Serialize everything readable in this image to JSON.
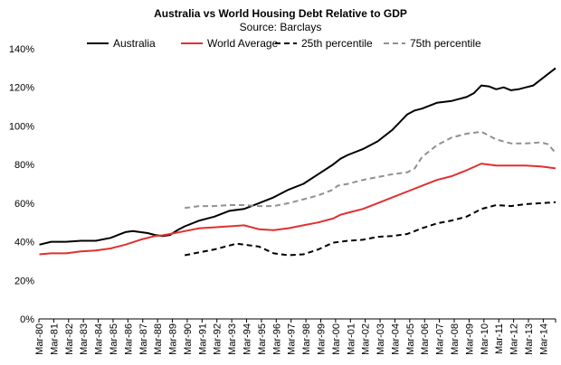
{
  "chart_data": {
    "type": "line",
    "title": "Australia vs World Housing Debt Relative to GDP",
    "subtitle": "Source: Barclays",
    "xlabel": "",
    "ylabel": "",
    "ylim": [
      0,
      140
    ],
    "y_ticks": [
      0,
      20,
      40,
      60,
      80,
      100,
      120,
      140
    ],
    "y_tick_labels": [
      "0%",
      "20%",
      "40%",
      "60%",
      "80%",
      "100%",
      "120%",
      "140%"
    ],
    "x_range": [
      1980.17,
      2015.0
    ],
    "categories": [
      "Mar-80",
      "Mar-81",
      "Mar-82",
      "Mar-83",
      "Mar-84",
      "Mar-85",
      "Mar-86",
      "Mar-87",
      "Mar-88",
      "Mar-89",
      "Mar-90",
      "Mar-91",
      "Mar-92",
      "Mar-93",
      "Mar-94",
      "Mar-95",
      "Mar-96",
      "Mar-97",
      "Mar-98",
      "Mar-99",
      "Mar-00",
      "Mar-01",
      "Mar-02",
      "Mar-03",
      "Mar-04",
      "Mar-05",
      "Mar-06",
      "Mar-07",
      "Mar-08",
      "Mar-09",
      "Mar-10",
      "Mar-11",
      "Mar-12",
      "Mar-13",
      "Mar-14"
    ],
    "legend_position": "top",
    "grid": false,
    "series": [
      {
        "name": "Australia",
        "color": "#000000",
        "dash": "solid",
        "x": [
          1980.2,
          1981,
          1982,
          1983,
          1984,
          1985,
          1985.5,
          1986,
          1986.5,
          1987,
          1987.5,
          1988,
          1988.5,
          1989,
          1989.5,
          1990,
          1991,
          1992,
          1993,
          1994,
          1995,
          1996,
          1997,
          1998,
          1999,
          2000,
          2000.5,
          2001,
          2002,
          2003,
          2004,
          2005,
          2005.5,
          2006,
          2007,
          2008,
          2009,
          2009.5,
          2010,
          2010.5,
          2011,
          2011.5,
          2012,
          2012.5,
          2013,
          2013.5,
          2014,
          2014.5,
          2015
        ],
        "y": [
          38.5,
          40,
          40,
          40.5,
          40.5,
          42,
          43.5,
          45,
          45.5,
          45,
          44.5,
          43.5,
          43,
          43.5,
          46,
          48,
          51,
          53,
          56,
          57,
          60,
          63,
          67,
          70,
          75,
          80,
          83,
          85,
          88,
          92,
          98,
          106,
          108,
          109,
          112,
          113,
          115,
          117,
          121,
          120.5,
          119,
          120,
          118.5,
          119,
          120,
          121,
          124,
          127,
          130
        ]
      },
      {
        "name": "World Average",
        "color": "#e03030",
        "dash": "solid",
        "x": [
          1980.2,
          1981,
          1982,
          1983,
          1984,
          1985,
          1986,
          1987,
          1988,
          1988.5,
          1989,
          1990,
          1991,
          1992,
          1993,
          1994,
          1995,
          1996,
          1997,
          1998,
          1999,
          2000,
          2000.5,
          2001,
          2002,
          2003,
          2004,
          2005,
          2006,
          2007,
          2008,
          2009,
          2010,
          2011,
          2012,
          2013,
          2014,
          2014.5,
          2015
        ],
        "y": [
          33.5,
          34,
          34,
          35,
          35.5,
          36.5,
          38.5,
          41,
          43,
          43.3,
          44,
          45.5,
          47,
          47.5,
          48,
          48.5,
          46.5,
          46,
          47,
          48.5,
          50,
          52,
          54,
          55,
          57,
          60,
          63,
          66,
          69,
          72,
          74,
          77,
          80.5,
          79.5,
          79.5,
          79.5,
          79,
          78.5,
          78
        ]
      },
      {
        "name": "25th percentile",
        "color": "#000000",
        "dash": "dashed",
        "x": [
          1990,
          1991,
          1992,
          1993,
          1993.5,
          1994,
          1995,
          1996,
          1997,
          1998,
          1999,
          2000,
          2001,
          2002,
          2003,
          2004,
          2005,
          2006,
          2007,
          2008,
          2009,
          2010,
          2011,
          2012,
          2013,
          2014,
          2015
        ],
        "y": [
          33,
          34.5,
          36,
          38,
          39,
          38.5,
          37.5,
          34,
          33,
          33.5,
          36,
          39.5,
          40.5,
          41,
          42.5,
          43,
          44,
          47,
          49.5,
          51,
          53,
          57,
          59,
          58.5,
          59.5,
          60,
          60.5
        ]
      },
      {
        "name": "75th percentile",
        "color": "#909090",
        "dash": "dashed",
        "x": [
          1990,
          1991,
          1992,
          1993,
          1994,
          1995,
          1996,
          1997,
          1998,
          1999,
          2000,
          2000.3,
          2001,
          2002,
          2003,
          2004,
          2005,
          2005.5,
          2006,
          2007,
          2008,
          2009,
          2010,
          2011,
          2012,
          2013,
          2014,
          2014.5,
          2015
        ],
        "y": [
          57.5,
          58.5,
          58.5,
          59,
          59,
          58.5,
          58.5,
          60,
          62,
          64,
          67,
          69,
          70,
          72,
          73.5,
          75,
          76,
          78,
          84,
          90,
          94,
          96,
          97,
          93,
          91,
          91,
          91.5,
          90.5,
          86
        ]
      }
    ]
  }
}
